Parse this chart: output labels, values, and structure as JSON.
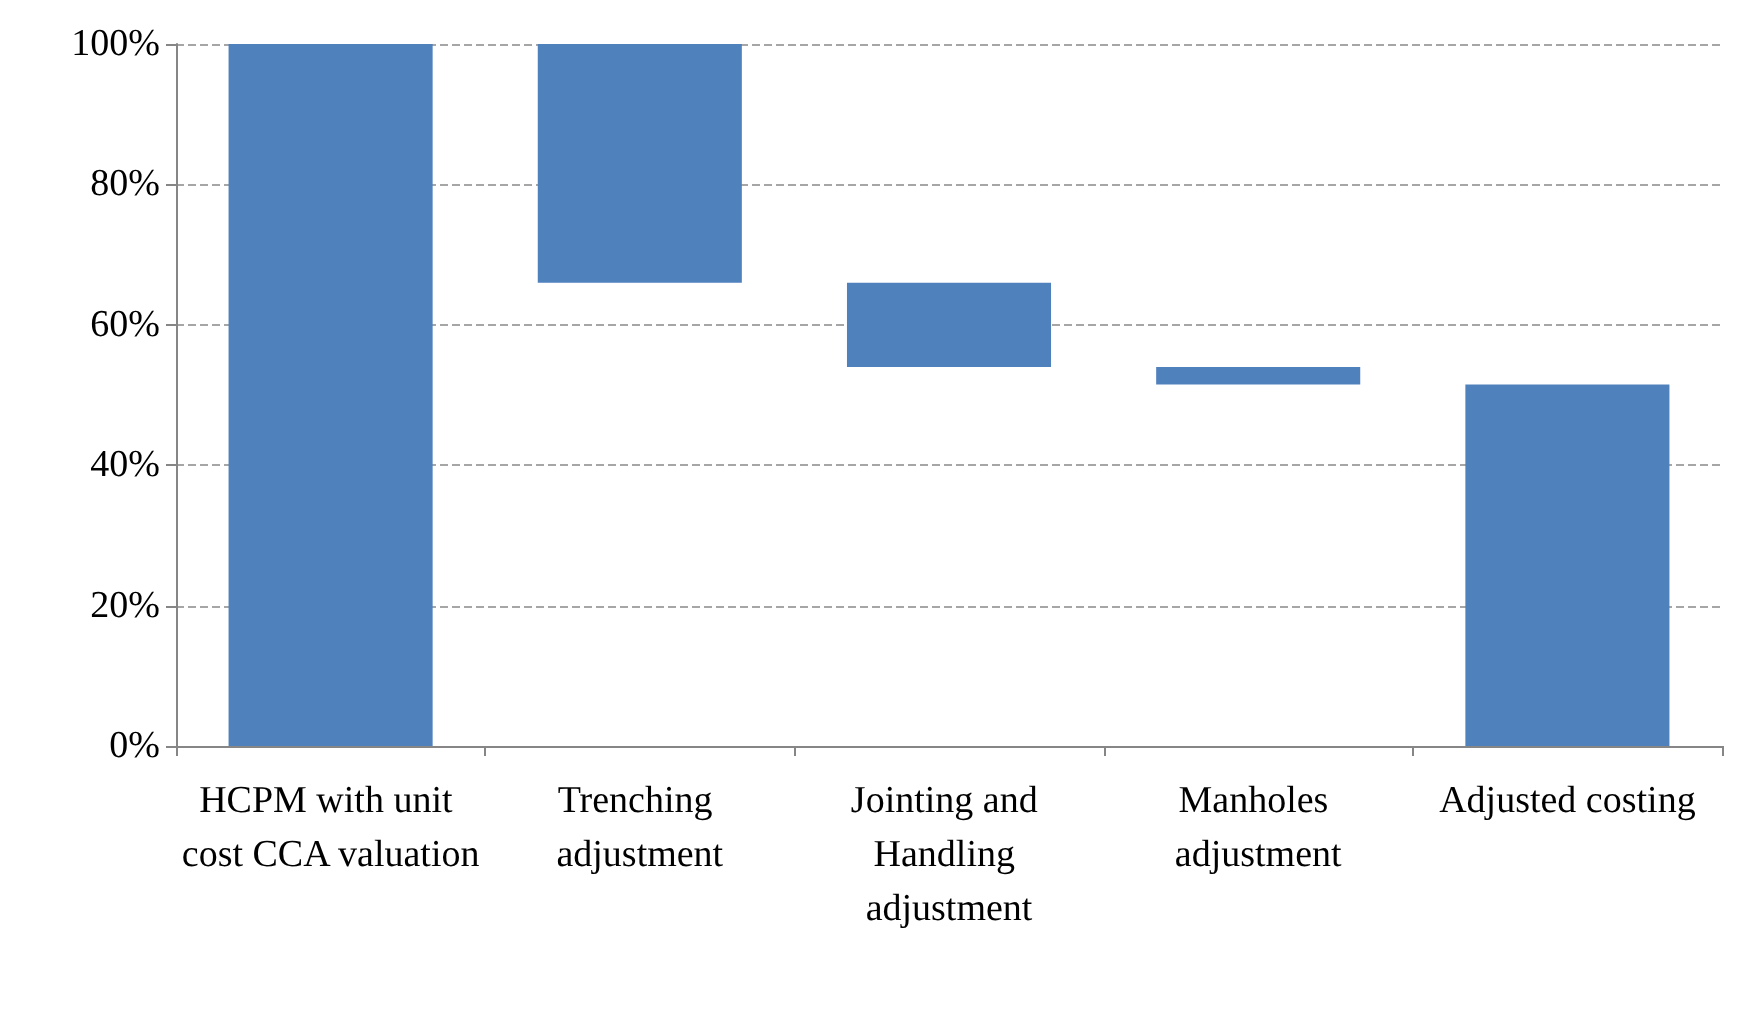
{
  "chart_data": {
    "type": "bar",
    "categories": [
      "HCPM with unit cost CCA valuation",
      "Trenching adjustment",
      "Jointing and Handling adjustment",
      "Manholes adjustment",
      "Adjusted costing"
    ],
    "values": [
      100,
      34,
      12,
      2.5,
      51.5
    ],
    "base": [
      0,
      66,
      54,
      51.5,
      0
    ],
    "color": "#4f81bd",
    "ylim": [
      0,
      100
    ],
    "yticks": [
      {
        "value": 0,
        "label": "0%"
      },
      {
        "value": 20,
        "label": "20%"
      },
      {
        "value": 40,
        "label": "40%"
      },
      {
        "value": 60,
        "label": "60%"
      },
      {
        "value": 80,
        "label": "80%"
      },
      {
        "value": 100,
        "label": "100%"
      }
    ],
    "grid": "y"
  }
}
